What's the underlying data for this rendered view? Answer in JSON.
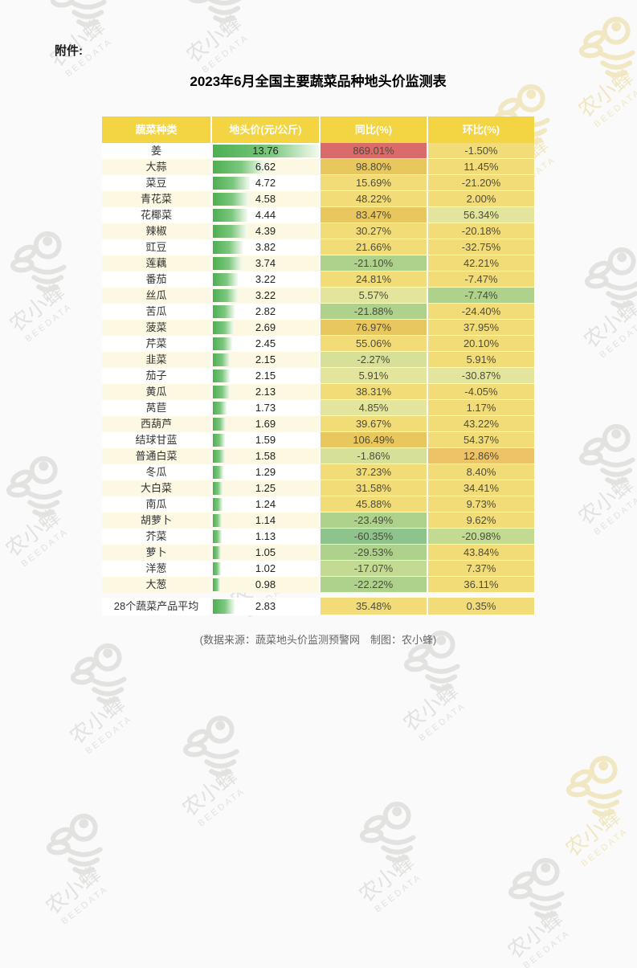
{
  "page": {
    "attachment_label": "附件:",
    "title": "2023年6月全国主要蔬菜品种地头价监测表",
    "caption": "(数据来源：蔬菜地头价监测预警网　制图：农小蜂)",
    "watermark": {
      "name": "农小蜂",
      "brand": "BEEDATA"
    }
  },
  "colors": {
    "header_bg": "#f3d443",
    "row_cream": "#fdf8e2",
    "row_white": "#ffffff",
    "bar_green": "#4caf52",
    "tones": {
      "red": "#d96b6b",
      "gold": "#e9c75f",
      "yellow": "#f2dc77",
      "paleYellowGreen": "#e3e59c",
      "yellowGreen": "#d7e098",
      "lightGreen": "#c3da93",
      "green": "#aed18c",
      "darkGreen": "#8ec48c",
      "orange": "#eec367"
    }
  },
  "table": {
    "headers": [
      "蔬菜种类",
      "地头价(元/公斤)",
      "同比(%)",
      "环比(%)"
    ],
    "max_price": 13.76,
    "rows": [
      {
        "name": "姜",
        "price": "13.76",
        "yoy": "869.01%",
        "mom": "-1.50%",
        "yoy_tone": "red",
        "mom_tone": "yellow"
      },
      {
        "name": "大蒜",
        "price": "6.62",
        "yoy": "98.80%",
        "mom": "11.45%",
        "yoy_tone": "gold",
        "mom_tone": "yellow"
      },
      {
        "name": "菜豆",
        "price": "4.72",
        "yoy": "15.69%",
        "mom": "-21.20%",
        "yoy_tone": "yellow",
        "mom_tone": "yellow"
      },
      {
        "name": "青花菜",
        "price": "4.58",
        "yoy": "48.22%",
        "mom": "2.00%",
        "yoy_tone": "yellow",
        "mom_tone": "yellow"
      },
      {
        "name": "花椰菜",
        "price": "4.44",
        "yoy": "83.47%",
        "mom": "56.34%",
        "yoy_tone": "gold",
        "mom_tone": "paleYellowGreen"
      },
      {
        "name": "辣椒",
        "price": "4.39",
        "yoy": "30.27%",
        "mom": "-20.18%",
        "yoy_tone": "yellow",
        "mom_tone": "yellow"
      },
      {
        "name": "豇豆",
        "price": "3.82",
        "yoy": "21.66%",
        "mom": "-32.75%",
        "yoy_tone": "yellow",
        "mom_tone": "yellow"
      },
      {
        "name": "莲藕",
        "price": "3.74",
        "yoy": "-21.10%",
        "mom": "42.21%",
        "yoy_tone": "green",
        "mom_tone": "yellow"
      },
      {
        "name": "番茄",
        "price": "3.22",
        "yoy": "24.81%",
        "mom": "-7.47%",
        "yoy_tone": "yellow",
        "mom_tone": "yellow"
      },
      {
        "name": "丝瓜",
        "price": "3.22",
        "yoy": "5.57%",
        "mom": "-7.74%",
        "yoy_tone": "paleYellowGreen",
        "mom_tone": "green"
      },
      {
        "name": "苦瓜",
        "price": "2.82",
        "yoy": "-21.88%",
        "mom": "-24.40%",
        "yoy_tone": "green",
        "mom_tone": "yellow"
      },
      {
        "name": "菠菜",
        "price": "2.69",
        "yoy": "76.97%",
        "mom": "37.95%",
        "yoy_tone": "gold",
        "mom_tone": "yellow"
      },
      {
        "name": "芹菜",
        "price": "2.45",
        "yoy": "55.06%",
        "mom": "20.10%",
        "yoy_tone": "yellow",
        "mom_tone": "yellow"
      },
      {
        "name": "韭菜",
        "price": "2.15",
        "yoy": "-2.27%",
        "mom": "5.91%",
        "yoy_tone": "yellowGreen",
        "mom_tone": "yellow"
      },
      {
        "name": "茄子",
        "price": "2.15",
        "yoy": "5.91%",
        "mom": "-30.87%",
        "yoy_tone": "paleYellowGreen",
        "mom_tone": "paleYellowGreen"
      },
      {
        "name": "黄瓜",
        "price": "2.13",
        "yoy": "38.31%",
        "mom": "-4.05%",
        "yoy_tone": "yellow",
        "mom_tone": "yellow"
      },
      {
        "name": "莴苣",
        "price": "1.73",
        "yoy": "4.85%",
        "mom": "1.17%",
        "yoy_tone": "paleYellowGreen",
        "mom_tone": "yellow"
      },
      {
        "name": "西葫芦",
        "price": "1.69",
        "yoy": "39.67%",
        "mom": "43.22%",
        "yoy_tone": "yellow",
        "mom_tone": "yellow"
      },
      {
        "name": "结球甘蓝",
        "price": "1.59",
        "yoy": "106.49%",
        "mom": "54.37%",
        "yoy_tone": "gold",
        "mom_tone": "yellow"
      },
      {
        "name": "普通白菜",
        "price": "1.58",
        "yoy": "-1.86%",
        "mom": "12.86%",
        "yoy_tone": "yellowGreen",
        "mom_tone": "orange"
      },
      {
        "name": "冬瓜",
        "price": "1.29",
        "yoy": "37.23%",
        "mom": "8.40%",
        "yoy_tone": "yellow",
        "mom_tone": "yellow"
      },
      {
        "name": "大白菜",
        "price": "1.25",
        "yoy": "31.58%",
        "mom": "34.41%",
        "yoy_tone": "yellow",
        "mom_tone": "yellow"
      },
      {
        "name": "南瓜",
        "price": "1.24",
        "yoy": "45.88%",
        "mom": "9.73%",
        "yoy_tone": "yellow",
        "mom_tone": "yellow"
      },
      {
        "name": "胡萝卜",
        "price": "1.14",
        "yoy": "-23.49%",
        "mom": "9.62%",
        "yoy_tone": "green",
        "mom_tone": "yellow"
      },
      {
        "name": "芥菜",
        "price": "1.13",
        "yoy": "-60.35%",
        "mom": "-20.98%",
        "yoy_tone": "darkGreen",
        "mom_tone": "lightGreen"
      },
      {
        "name": "萝卜",
        "price": "1.05",
        "yoy": "-29.53%",
        "mom": "43.84%",
        "yoy_tone": "green",
        "mom_tone": "yellow"
      },
      {
        "name": "洋葱",
        "price": "1.02",
        "yoy": "-17.07%",
        "mom": "7.37%",
        "yoy_tone": "lightGreen",
        "mom_tone": "yellow"
      },
      {
        "name": "大葱",
        "price": "0.98",
        "yoy": "-22.22%",
        "mom": "36.11%",
        "yoy_tone": "green",
        "mom_tone": "yellow"
      }
    ],
    "summary": {
      "name": "28个蔬菜产品平均",
      "price": "2.83",
      "yoy": "35.48%",
      "mom": "0.35%",
      "yoy_tone": "yellow",
      "mom_tone": "yellow"
    }
  }
}
